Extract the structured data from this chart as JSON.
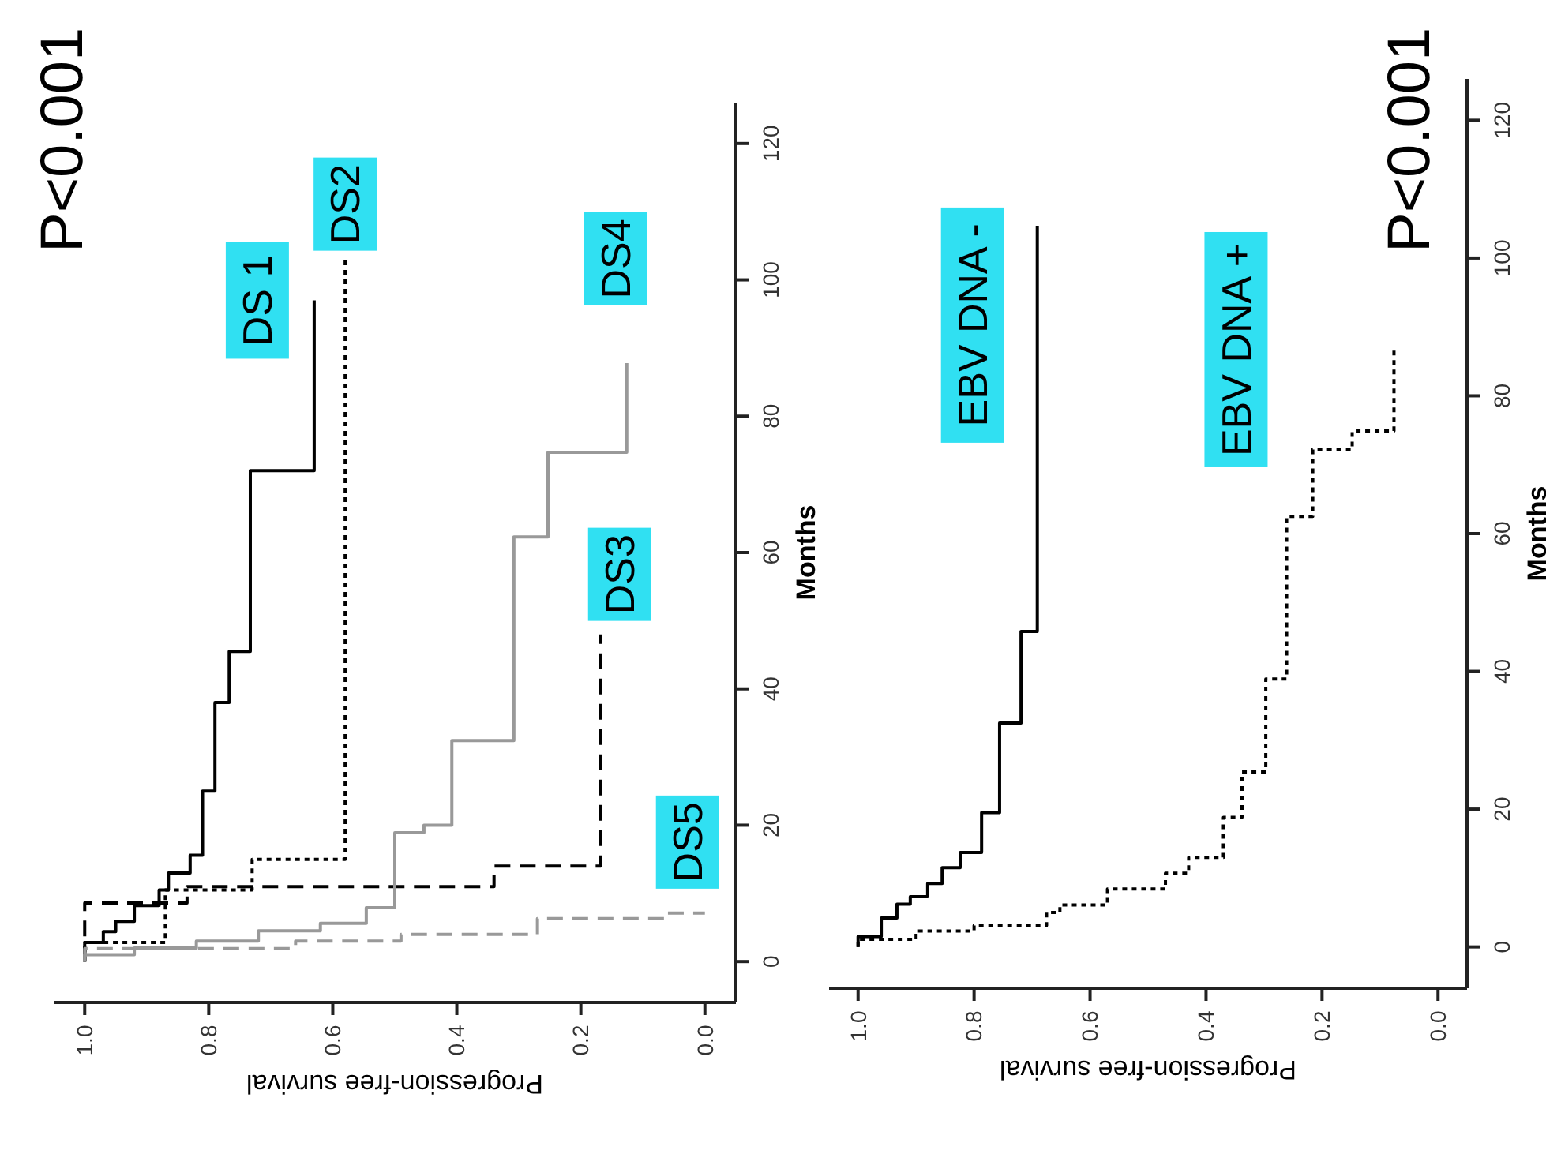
{
  "chart_data": [
    {
      "type": "step",
      "xlabel": "Progression-free survival",
      "ylabel": "Months",
      "annotations": [
        "P<0.001"
      ],
      "xlim": [
        1.05,
        -0.05
      ],
      "ylim": [
        -6,
        126
      ],
      "xticks": [
        {
          "value": 1,
          "label": "1.0"
        },
        {
          "value": 0.8,
          "label": "0.8"
        },
        {
          "value": 0.6,
          "label": "0.6"
        },
        {
          "value": 0.4,
          "label": "0.4"
        },
        {
          "value": 0.2,
          "label": "0.2"
        },
        {
          "value": 0,
          "label": "0.0"
        }
      ],
      "yticks": [
        0,
        20,
        40,
        60,
        80,
        100,
        120
      ],
      "legend": false,
      "grid": false,
      "series": [
        {
          "name": "DS 1",
          "color": "#000000",
          "line_style": "solid",
          "x": [
            1,
            0.97,
            0.95,
            0.92,
            0.88,
            0.865,
            0.83,
            0.81,
            0.79,
            0.767,
            0.733,
            0.63,
            0.63
          ],
          "values": [
            0,
            2.8,
            4.4,
            5.9,
            8.2,
            10.5,
            13,
            15.6,
            25,
            38,
            45.5,
            72,
            97
          ]
        },
        {
          "name": "DS2",
          "color": "#000000",
          "line_style": "dotted",
          "x": [
            1,
            0.87,
            0.73,
            0.58,
            0.58
          ],
          "values": [
            0,
            2.8,
            10.5,
            15,
            103
          ]
        },
        {
          "name": "DS3",
          "color": "#000000",
          "line_style": "dashed",
          "x": [
            1,
            0.835,
            0.34,
            0.168,
            0.168
          ],
          "values": [
            0,
            8.6,
            11,
            14,
            48
          ]
        },
        {
          "name": "DS4",
          "color": "#999999",
          "line_style": "solid",
          "x": [
            1,
            0.92,
            0.82,
            0.72,
            0.62,
            0.546,
            0.5,
            0.453,
            0.408,
            0.308,
            0.253,
            0.126,
            0.126
          ],
          "values": [
            0,
            1,
            2,
            3,
            4.5,
            5.6,
            7.9,
            18.9,
            20,
            32.4,
            62.3,
            74.7,
            87.8
          ]
        },
        {
          "name": "DS5",
          "color": "#999999",
          "line_style": "dashed",
          "x": [
            1,
            0.66,
            0.49,
            0.27,
            0.06,
            0
          ],
          "values": [
            0,
            1.9,
            3,
            4,
            6.3,
            7.1
          ]
        }
      ]
    },
    {
      "type": "step",
      "xlabel": "Progression-free survival",
      "ylabel": "Months",
      "annotations": [
        "P<0.001"
      ],
      "xlim": [
        1.05,
        -0.05
      ],
      "ylim": [
        -6,
        126
      ],
      "xticks": [
        {
          "value": 1,
          "label": "1.0"
        },
        {
          "value": 0.8,
          "label": "0.8"
        },
        {
          "value": 0.6,
          "label": "0.6"
        },
        {
          "value": 0.4,
          "label": "0.4"
        },
        {
          "value": 0.2,
          "label": "0.2"
        },
        {
          "value": 0,
          "label": "0.0"
        }
      ],
      "yticks": [
        0,
        20,
        40,
        60,
        80,
        100,
        120
      ],
      "legend": false,
      "grid": false,
      "series": [
        {
          "name": "EBV DNA -",
          "color": "#000000",
          "line_style": "solid",
          "x": [
            1,
            0.96,
            0.933,
            0.91,
            0.88,
            0.855,
            0.824,
            0.787,
            0.756,
            0.719,
            0.691,
            0.691
          ],
          "values": [
            0,
            1.5,
            4.2,
            6.2,
            7.3,
            9.2,
            11.5,
            13.7,
            19.5,
            32.5,
            45.8,
            104.7
          ]
        },
        {
          "name": "EBV DNA +",
          "color": "#000000",
          "line_style": "dotted",
          "x": [
            1,
            0.9,
            0.8,
            0.675,
            0.652,
            0.57,
            0.47,
            0.43,
            0.37,
            0.338,
            0.297,
            0.261,
            0.216,
            0.148,
            0.076,
            0.076
          ],
          "values": [
            0,
            1.1,
            2.3,
            3.1,
            5,
            6.1,
            8.4,
            10.7,
            13,
            18.8,
            25.4,
            38.9,
            62.5,
            72.2,
            74.9,
            86.7
          ]
        }
      ]
    }
  ]
}
